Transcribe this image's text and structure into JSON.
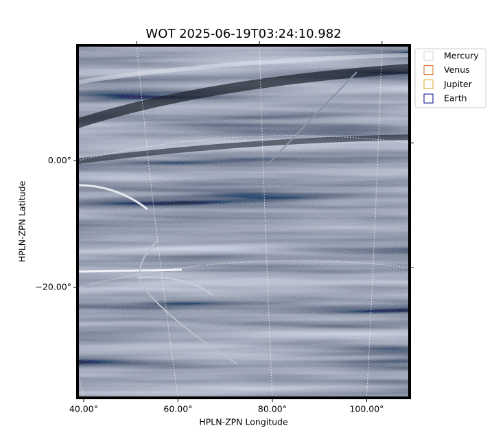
{
  "chart_data": {
    "type": "image",
    "title": "WOT 2025-06-19T03:24:10.982",
    "x_label": "HPLN-ZPN Longitude",
    "y_label": "HPLN-ZPN Latitude",
    "xlim": [
      38.7,
      109.1
    ],
    "ylim": [
      -37.4,
      18.2
    ],
    "xticks": [
      {
        "value": 40,
        "label": "40.00°"
      },
      {
        "value": 60,
        "label": "60.00°"
      },
      {
        "value": 80,
        "label": "80.00°"
      },
      {
        "value": 100,
        "label": "100.00°"
      }
    ],
    "yticks": [
      {
        "value": 0,
        "label": "0.00°"
      },
      {
        "value": -20,
        "label": "−20.00°"
      }
    ],
    "grid": true,
    "legend_position": "outside upper right",
    "series": [
      {
        "name": "Mercury",
        "color": "#d3d3d3"
      },
      {
        "name": "Venus",
        "color": "#d2691e"
      },
      {
        "name": "Jupiter",
        "color": "#daa520"
      },
      {
        "name": "Earth",
        "color": "#000080"
      }
    ]
  }
}
